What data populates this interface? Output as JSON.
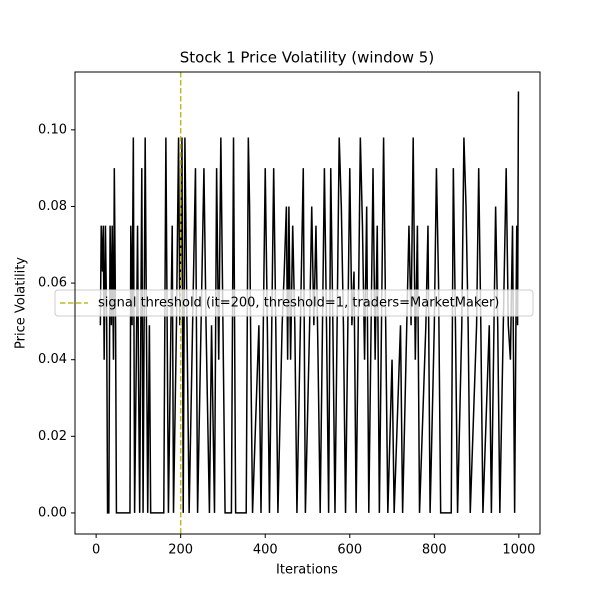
{
  "chart_data": {
    "type": "line",
    "title": "Stock 1 Price Volatility (window 5)",
    "x_label": "Iterations",
    "y_label": "Price Volatility",
    "xlim": [
      -50,
      1050
    ],
    "ylim": [
      -0.0055,
      0.1151
    ],
    "xticks": [
      0,
      200,
      400,
      600,
      800,
      1000
    ],
    "yticks": [
      {
        "value": 0,
        "label": "0.00"
      },
      {
        "value": 0.02,
        "label": "0.02"
      },
      {
        "value": 0.04,
        "label": "0.04"
      },
      {
        "value": 0.06,
        "label": "0.06"
      },
      {
        "value": 0.08,
        "label": "0.08"
      },
      {
        "value": 0.1,
        "label": "0.10"
      }
    ],
    "x": [
      10,
      12,
      15,
      17,
      19,
      22,
      25,
      27,
      30,
      33,
      36,
      38,
      41,
      43,
      46,
      48,
      80,
      82,
      85,
      88,
      91,
      95,
      98,
      100,
      103,
      108,
      111,
      116,
      119,
      122,
      126,
      129,
      160,
      162,
      165,
      168,
      171,
      180,
      183,
      190,
      195,
      198,
      203,
      206,
      210,
      215,
      220,
      235,
      240,
      255,
      260,
      268,
      273,
      280,
      285,
      290,
      295,
      300,
      305,
      320,
      325,
      330,
      355,
      360,
      363,
      366,
      370,
      385,
      390,
      400,
      405,
      410,
      420,
      425,
      430,
      440,
      445,
      450,
      453,
      456,
      460,
      465,
      470,
      475,
      490,
      495,
      505,
      510,
      515,
      520,
      525,
      530,
      540,
      545,
      550,
      555,
      560,
      565,
      575,
      580,
      585,
      590,
      600,
      605,
      610,
      615,
      625,
      630,
      635,
      640,
      645,
      655,
      660,
      665,
      670,
      680,
      685,
      690,
      700,
      705,
      720,
      725,
      740,
      745,
      750,
      755,
      760,
      765,
      780,
      785,
      790,
      800,
      805,
      810,
      815,
      840,
      845,
      850,
      855,
      865,
      870,
      875,
      880,
      885,
      900,
      905,
      910,
      915,
      930,
      935,
      945,
      950,
      955,
      970,
      975,
      980,
      985,
      990,
      993,
      995,
      997,
      999
    ],
    "series": [
      {
        "name": "Stock 1",
        "color": "#000000",
        "values": [
          0.049,
          0.075,
          0.063,
          0.075,
          0.04,
          0.075,
          0.049,
          0,
          0,
          0.075,
          0.049,
          0.075,
          0.04,
          0.09,
          0.049,
          0,
          0,
          0.075,
          0.049,
          0.098,
          0,
          0.04,
          0.075,
          0.04,
          0,
          0.09,
          0,
          0.098,
          0.049,
          0,
          0.049,
          0,
          0,
          0.04,
          0.098,
          0.049,
          0,
          0.075,
          0,
          0.049,
          0.098,
          0.049,
          0.098,
          0,
          0.098,
          0.049,
          0,
          0.09,
          0,
          0.09,
          0.049,
          0,
          0.049,
          0,
          0.09,
          0.04,
          0.098,
          0.049,
          0,
          0,
          0.098,
          0,
          0,
          0.098,
          0.08,
          0.04,
          0,
          0.049,
          0,
          0.09,
          0.049,
          0,
          0.09,
          0.049,
          0,
          0.049,
          0.063,
          0.08,
          0.04,
          0.08,
          0.04,
          0.075,
          0.049,
          0,
          0.09,
          0,
          0.049,
          0.08,
          0.049,
          0.075,
          0.04,
          0,
          0.09,
          0.049,
          0,
          0.09,
          0.049,
          0,
          0.098,
          0.08,
          0.049,
          0,
          0.09,
          0.049,
          0.063,
          0,
          0.098,
          0.075,
          0.04,
          0.08,
          0,
          0.09,
          0.04,
          0.075,
          0,
          0.098,
          0.049,
          0,
          0.04,
          0,
          0.049,
          0,
          0.075,
          0.049,
          0.098,
          0.04,
          0.075,
          0,
          0.049,
          0.075,
          0,
          0.049,
          0.09,
          0.06,
          0,
          0,
          0.09,
          0.049,
          0,
          0.049,
          0.098,
          0.08,
          0.049,
          0,
          0.049,
          0.09,
          0.049,
          0,
          0.049,
          0,
          0.08,
          0.049,
          0,
          0.09,
          0.049,
          0.04,
          0.075,
          0,
          0.049,
          0.075,
          0.049,
          0.11
        ]
      }
    ],
    "vlines": [
      {
        "x": 200,
        "label": "signal threshold (it=200, threshold=1, traders=MarketMaker)",
        "color": "#bcbd22"
      }
    ]
  }
}
